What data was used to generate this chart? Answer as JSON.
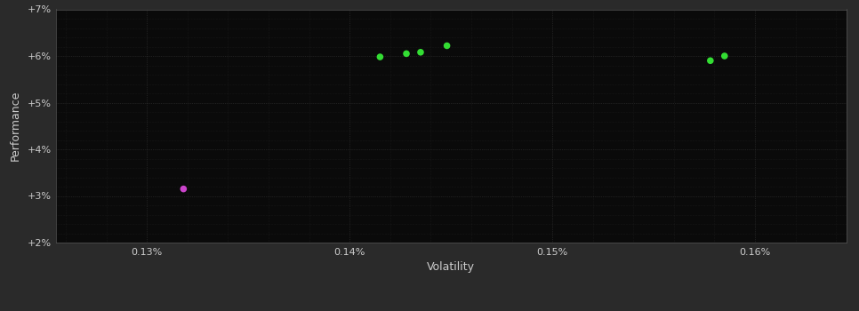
{
  "background_color": "#2a2a2a",
  "plot_bg_color": "#0a0a0a",
  "grid_color": "#3a3a3a",
  "minor_grid_color": "#2a2a2a",
  "text_color": "#cccccc",
  "xlabel": "Volatility",
  "ylabel": "Performance",
  "xlim": [
    0.1255,
    0.1645
  ],
  "ylim": [
    0.02,
    0.07
  ],
  "xticks": [
    0.13,
    0.14,
    0.15,
    0.16
  ],
  "xtick_labels": [
    "0.13%",
    "0.14%",
    "0.15%",
    "0.16%"
  ],
  "yticks": [
    0.02,
    0.03,
    0.04,
    0.05,
    0.06,
    0.07
  ],
  "ytick_labels": [
    "+2%",
    "+3%",
    "+4%",
    "+5%",
    "+6%",
    "+7%"
  ],
  "green_points": [
    [
      0.1415,
      0.0598
    ],
    [
      0.1428,
      0.0605
    ],
    [
      0.1435,
      0.0608
    ],
    [
      0.1448,
      0.0622
    ],
    [
      0.1578,
      0.059
    ],
    [
      0.1585,
      0.06
    ]
  ],
  "magenta_points": [
    [
      0.1318,
      0.0315
    ]
  ],
  "green_color": "#33dd33",
  "magenta_color": "#cc44cc",
  "marker_size": 30
}
